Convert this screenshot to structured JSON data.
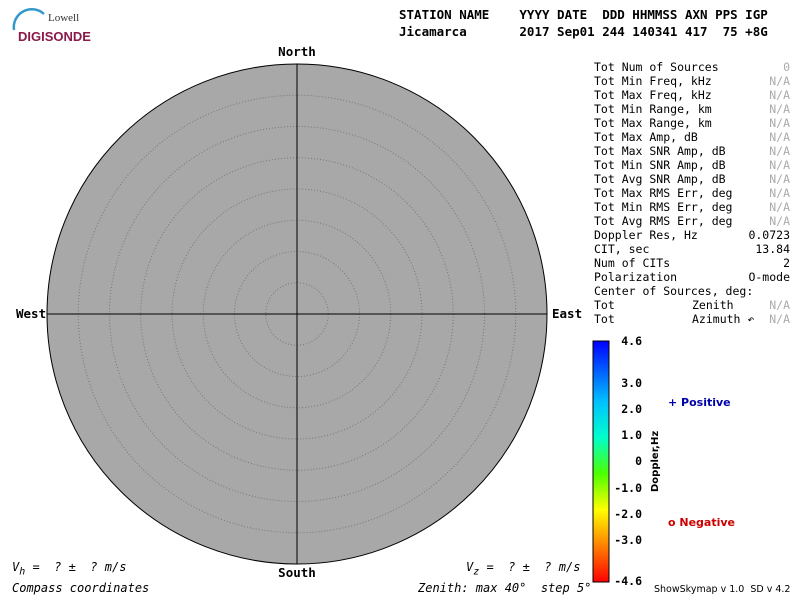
{
  "logo": {
    "top": "Lowell",
    "bottom": "DIGISONDE"
  },
  "header": {
    "labels": "STATION NAME    YYYY DATE  DDD HHMMSS AXN PPS IGP",
    "values": "Jicamarca       2017 Sep01 244 140341 417  75 +8G"
  },
  "compass": {
    "north": "North",
    "south": "South",
    "east": "East",
    "west": "West"
  },
  "stats": [
    {
      "label": "Tot Num of Sources",
      "value": "0",
      "dim": true
    },
    {
      "label": "Tot Min Freq, kHz",
      "value": "N/A",
      "dim": true
    },
    {
      "label": "Tot Max Freq, kHz",
      "value": "N/A",
      "dim": true
    },
    {
      "label": "Tot Min Range, km",
      "value": "N/A",
      "dim": true
    },
    {
      "label": "Tot Max Range, km",
      "value": "N/A",
      "dim": true
    },
    {
      "label": "Tot Max Amp, dB",
      "value": "N/A",
      "dim": true
    },
    {
      "label": "Tot Max SNR Amp, dB",
      "value": "N/A",
      "dim": true
    },
    {
      "label": "Tot Min SNR Amp, dB",
      "value": "N/A",
      "dim": true
    },
    {
      "label": "Tot Avg SNR Amp, dB",
      "value": "N/A",
      "dim": true
    },
    {
      "label": "Tot Max RMS Err, deg",
      "value": "N/A",
      "dim": true
    },
    {
      "label": "Tot Min RMS Err, deg",
      "value": "N/A",
      "dim": true
    },
    {
      "label": "Tot Avg RMS Err, deg",
      "value": "N/A",
      "dim": true
    },
    {
      "label": "Doppler Res, Hz",
      "value": "0.0723"
    },
    {
      "label": "CIT, sec",
      "value": "13.84"
    },
    {
      "label": "Num of CITs",
      "value": "2"
    },
    {
      "label": "Polarization",
      "value": "O-mode"
    },
    {
      "label": "Center of Sources, deg:"
    },
    {
      "label": "Tot",
      "sub": "Zenith",
      "value": "N/A",
      "dim": true
    },
    {
      "label": "Tot",
      "sub": "Azimuth ↶",
      "value": "N/A",
      "dim": true
    }
  ],
  "colorbar": {
    "title": "Doppler,Hz",
    "ticks": [
      "4.6",
      "3.0",
      "2.0",
      "1.0",
      "0",
      "-1.0",
      "-2.0",
      "-3.0",
      "-4.6"
    ]
  },
  "legend": {
    "positive": "+ Positive",
    "negative": "o Negative"
  },
  "footer": {
    "vh": {
      "v": "V",
      "sub": "h",
      "rest": "=  ? ±  ? m/s"
    },
    "vz": {
      "v": "V",
      "sub": "z",
      "rest": "=  ? ±  ? m/s"
    },
    "coords": "Compass coordinates",
    "zenith": "Zenith: max 40°  step 5°",
    "version": "ShowSkymap v 1.0  SD v 4.2"
  }
}
